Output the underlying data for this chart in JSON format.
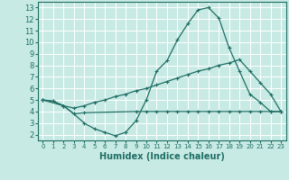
{
  "xlabel": "Humidex (Indice chaleur)",
  "bg_color": "#c8eae4",
  "grid_color": "#ffffff",
  "line_color": "#1e6e64",
  "xlim": [
    -0.5,
    23.5
  ],
  "ylim": [
    1.5,
    13.5
  ],
  "xticks": [
    0,
    1,
    2,
    3,
    4,
    5,
    6,
    7,
    8,
    9,
    10,
    11,
    12,
    13,
    14,
    15,
    16,
    17,
    18,
    19,
    20,
    21,
    22,
    23
  ],
  "yticks": [
    2,
    3,
    4,
    5,
    6,
    7,
    8,
    9,
    10,
    11,
    12,
    13
  ],
  "line1_x": [
    0,
    1,
    2,
    3,
    4,
    5,
    6,
    7,
    8,
    9,
    10,
    11,
    12,
    13,
    14,
    15,
    16,
    17,
    18,
    19,
    20,
    21,
    22,
    23
  ],
  "line1_y": [
    5.0,
    4.9,
    4.5,
    3.8,
    3.0,
    2.5,
    2.2,
    1.9,
    2.2,
    3.2,
    5.0,
    7.5,
    8.4,
    10.2,
    11.6,
    12.8,
    13.0,
    12.1,
    9.5,
    7.5,
    5.5,
    4.8,
    4.0,
    4.0
  ],
  "line2_x": [
    0,
    1,
    2,
    3,
    4,
    5,
    6,
    7,
    8,
    9,
    10,
    11,
    12,
    13,
    14,
    15,
    16,
    17,
    18,
    19,
    20,
    21,
    22,
    23
  ],
  "line2_y": [
    5.0,
    4.9,
    4.5,
    4.3,
    4.5,
    4.8,
    5.0,
    5.3,
    5.5,
    5.8,
    6.0,
    6.3,
    6.6,
    6.9,
    7.2,
    7.5,
    7.7,
    8.0,
    8.2,
    8.5,
    7.5,
    6.5,
    5.5,
    4.0
  ],
  "line3_x": [
    0,
    2,
    3,
    4,
    9,
    10,
    11,
    12,
    13,
    14,
    15,
    16,
    17,
    18,
    19,
    20,
    21,
    22,
    23
  ],
  "line3_y": [
    5.0,
    4.5,
    3.8,
    3.9,
    4.0,
    4.0,
    4.0,
    4.0,
    4.0,
    4.0,
    4.0,
    4.0,
    4.0,
    4.0,
    4.0,
    4.0,
    4.0,
    4.0,
    4.0
  ]
}
